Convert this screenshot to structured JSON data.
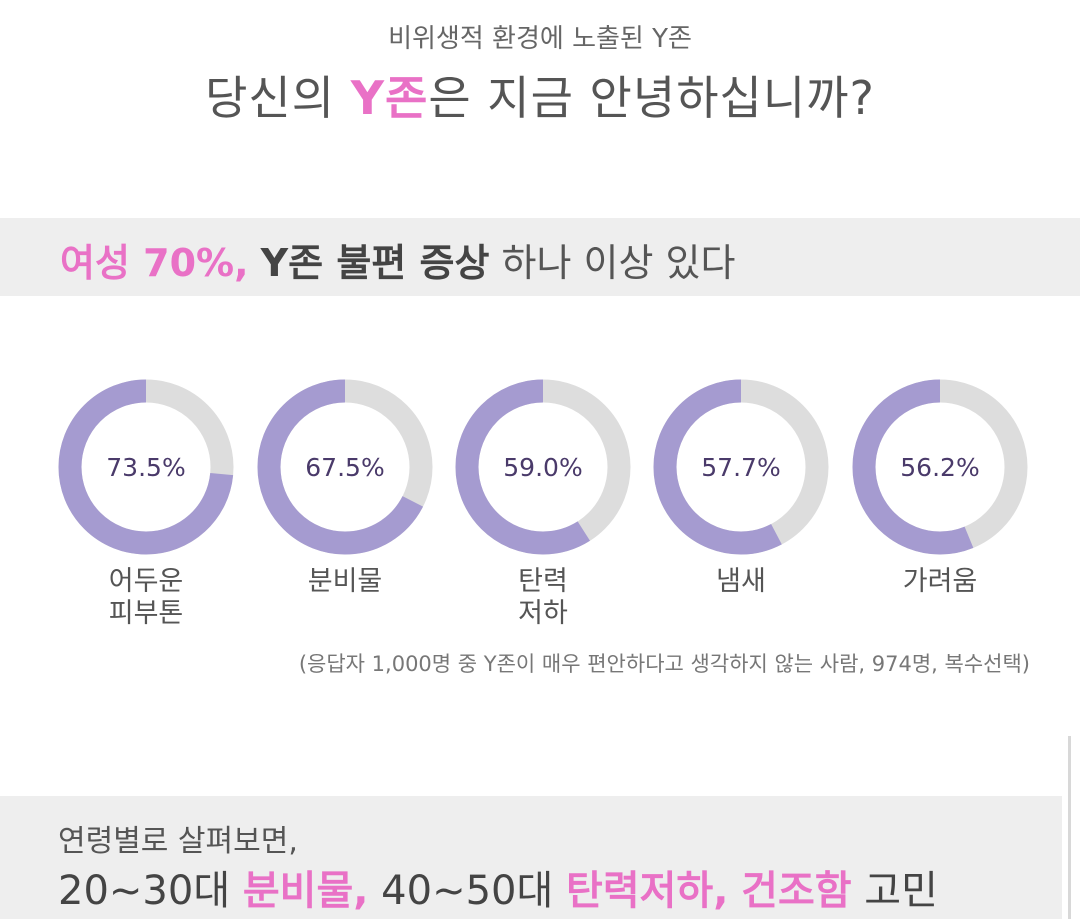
{
  "header": {
    "subtitle": "비위생적 환경에 노출된 Y존",
    "title_before": "당신의 ",
    "title_highlight": "Y존",
    "title_after": "은 지금 안녕하십니까?"
  },
  "headline": {
    "pink": "여성 70%,",
    "bold": "Y존 불편 증상",
    "rest": "하나 이상 있다"
  },
  "colors": {
    "donut_fill": "#a59bd0",
    "donut_track": "#dddddd",
    "accent_pink": "#e971c6",
    "band_bg": "#eeeeee"
  },
  "chart_data": {
    "type": "pie",
    "style": "donut",
    "categories": [
      "어두운 피부톤",
      "분비물",
      "탄력 저하",
      "냄새",
      "가려움"
    ],
    "category_lines": [
      [
        "어두운",
        "피부톤"
      ],
      [
        "분비물"
      ],
      [
        "탄력",
        "저하"
      ],
      [
        "냄새"
      ],
      [
        "가려움"
      ]
    ],
    "values": [
      73.5,
      67.5,
      59.0,
      57.7,
      56.2
    ],
    "value_labels": [
      "73.5%",
      "67.5%",
      "59.0%",
      "57.7%",
      "56.2%"
    ],
    "unit": "%",
    "max": 100,
    "footnote": "(응답자 1,000명 중 Y존이 매우 편안하다고 생각하지 않는 사람, 974명, 복수선택)"
  },
  "age_section": {
    "line1": "연령별로 살펴보면,",
    "age1": "20~30대",
    "age1_item": "분비물,",
    "age2": "40~50대",
    "age2_item1": "탄력저하,",
    "age2_item2": "건조함",
    "tail": "고민"
  }
}
